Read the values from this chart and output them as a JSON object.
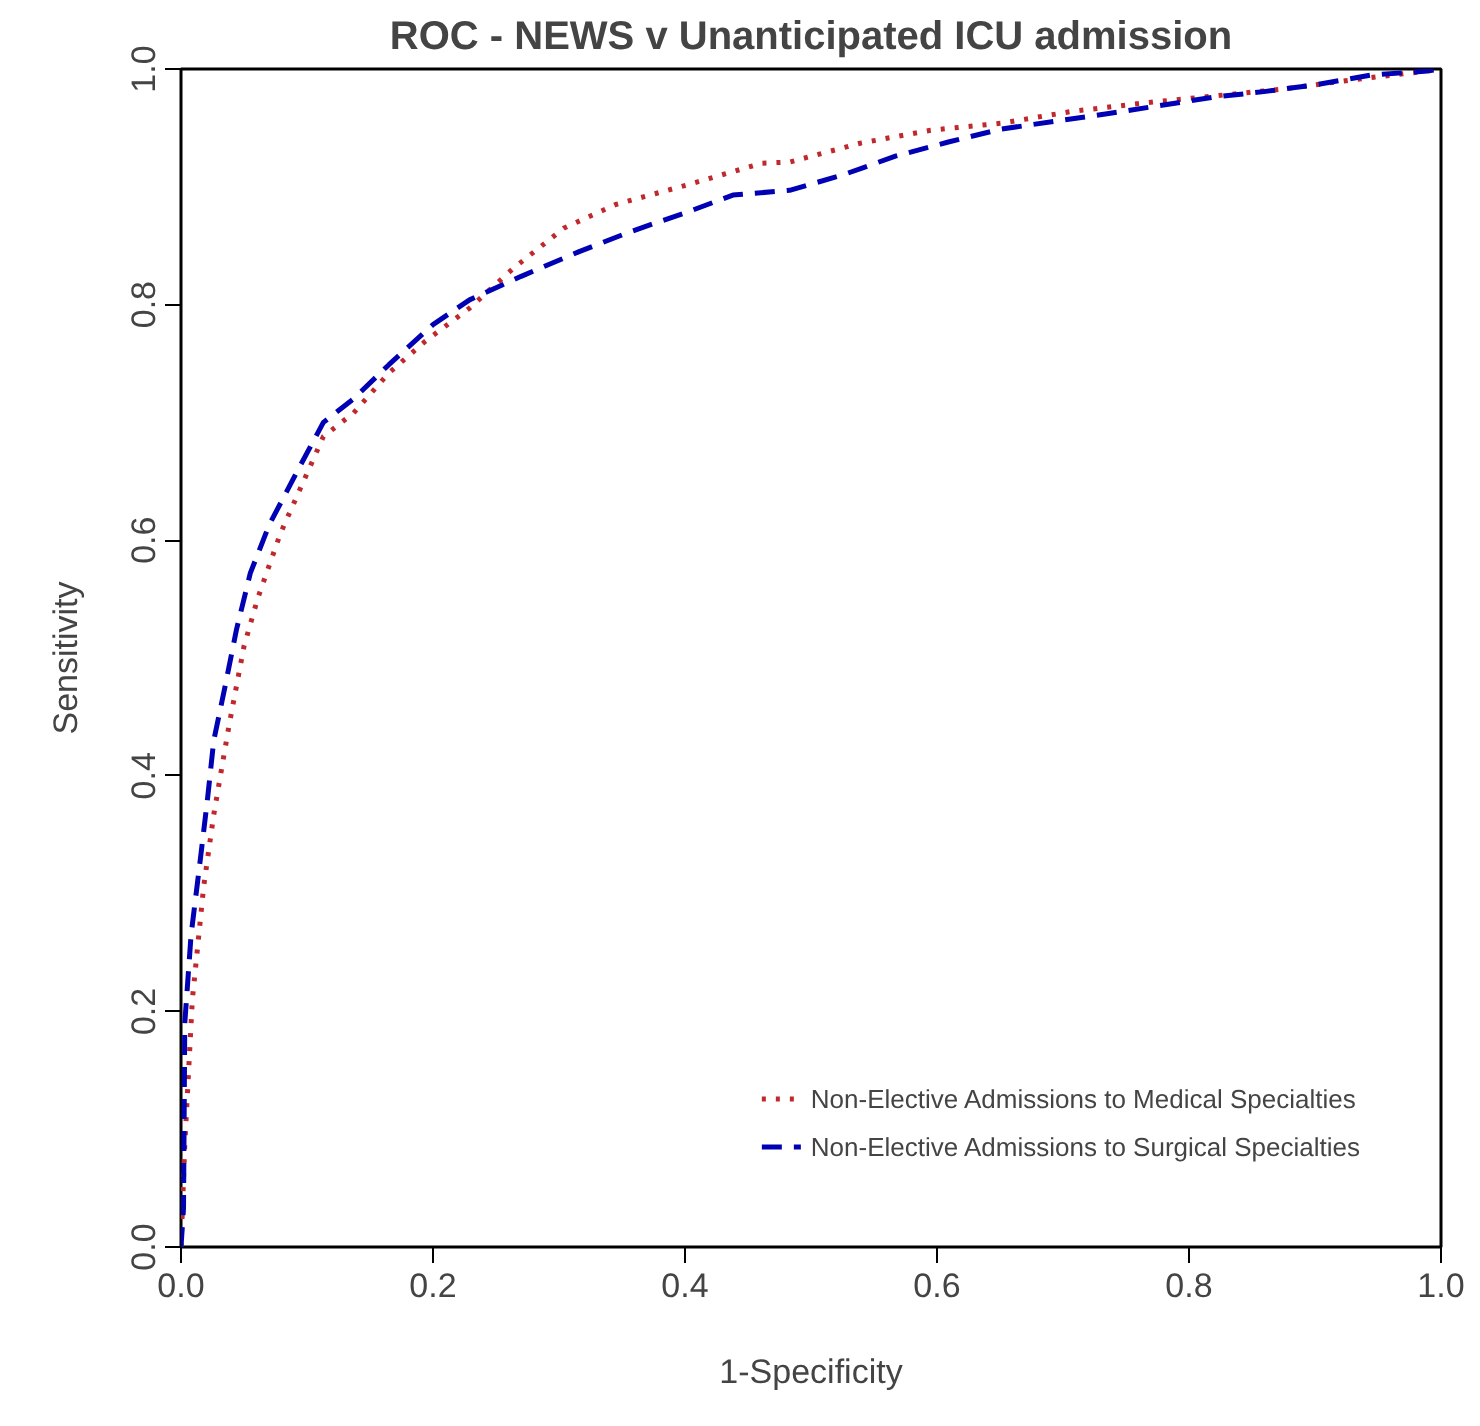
{
  "chart_data": {
    "type": "line",
    "title": "ROC - NEWS v Unanticipated ICU admission",
    "xlabel": "1-Specificity",
    "ylabel": "Sensitivity",
    "xlim": [
      0,
      1
    ],
    "ylim": [
      0,
      1
    ],
    "xticks": [
      {
        "value": 0,
        "label": "0.0"
      },
      0.2,
      0.4,
      0.6,
      0.8,
      {
        "value": 1,
        "label": "1.0"
      }
    ],
    "yticks": [
      {
        "value": 0,
        "label": "0.0"
      },
      0.2,
      0.4,
      0.6,
      0.8,
      {
        "value": 1,
        "label": "1.0"
      }
    ],
    "grid": false,
    "legend": "bottom right",
    "series": [
      {
        "name": "Non-Elective Admissions to Medical Specialties",
        "color": "#c0282d",
        "line_style": "dotted",
        "x": [
          0,
          0.003,
          0.009,
          0.018,
          0.026,
          0.038,
          0.05,
          0.061,
          0.079,
          0.096,
          0.113,
          0.137,
          0.165,
          0.194,
          0.229,
          0.264,
          0.304,
          0.345,
          0.403,
          0.461,
          0.483,
          0.539,
          0.595,
          0.651,
          0.707,
          0.763,
          0.819,
          0.875,
          0.931,
          0.987,
          1
        ],
        "values": [
          0,
          0.087,
          0.21,
          0.306,
          0.367,
          0.442,
          0.51,
          0.551,
          0.606,
          0.647,
          0.688,
          0.708,
          0.742,
          0.769,
          0.797,
          0.831,
          0.865,
          0.885,
          0.902,
          0.92,
          0.921,
          0.937,
          0.948,
          0.954,
          0.964,
          0.971,
          0.977,
          0.983,
          0.991,
          0.998,
          1
        ]
      },
      {
        "name": "Non-Elective Admissions to Surgical Specialties",
        "color": "#0000b4",
        "line_style": "dashed",
        "x": [
          0,
          0.002,
          0.003,
          0.008,
          0.015,
          0.021,
          0.026,
          0.035,
          0.044,
          0.055,
          0.07,
          0.093,
          0.113,
          0.137,
          0.165,
          0.2,
          0.229,
          0.27,
          0.316,
          0.357,
          0.403,
          0.438,
          0.483,
          0.525,
          0.567,
          0.609,
          0.651,
          0.696,
          0.735,
          0.777,
          0.819,
          0.861,
          0.903,
          0.945,
          0.987,
          1
        ],
        "values": [
          0,
          0.033,
          0.19,
          0.265,
          0.326,
          0.38,
          0.43,
          0.476,
          0.524,
          0.572,
          0.613,
          0.66,
          0.7,
          0.72,
          0.749,
          0.783,
          0.804,
          0.824,
          0.845,
          0.862,
          0.879,
          0.893,
          0.897,
          0.91,
          0.926,
          0.938,
          0.949,
          0.956,
          0.962,
          0.969,
          0.976,
          0.981,
          0.987,
          0.995,
          0.998,
          1
        ]
      }
    ]
  }
}
